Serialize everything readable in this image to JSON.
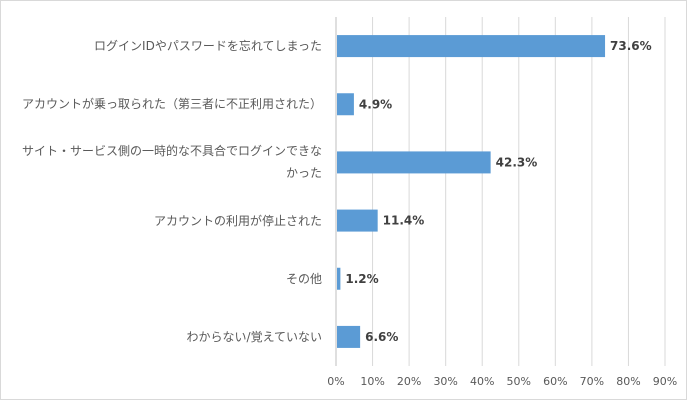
{
  "chart_data": {
    "type": "bar",
    "orientation": "horizontal",
    "categories": [
      "ログインIDやパスワードを忘れてしまった",
      "アカウントが乗っ取られた（第三者に不正利用された）",
      "サイト・サービス側の一時的な不具合でログインできなかった",
      "アカウントの利用が停止された",
      "その他",
      "わからない/覚えていない"
    ],
    "values": [
      73.6,
      4.9,
      42.3,
      11.4,
      1.2,
      6.6
    ],
    "data_labels": [
      "73.6%",
      "4.9%",
      "42.3%",
      "11.4%",
      "1.2%",
      "6.6%"
    ],
    "xlim": [
      0,
      90
    ],
    "xticks": [
      "0%",
      "10%",
      "20%",
      "30%",
      "40%",
      "50%",
      "60%",
      "70%",
      "80%",
      "90%"
    ],
    "grid": "vertical",
    "bar_color": "#5b9bd5",
    "title": "",
    "xlabel": "",
    "ylabel": ""
  }
}
